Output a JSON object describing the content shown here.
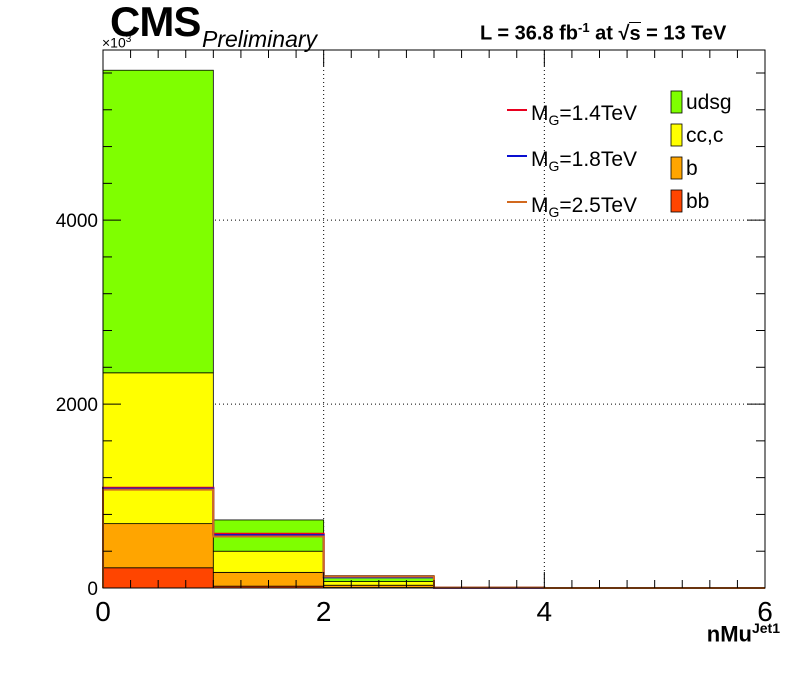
{
  "header": {
    "experiment": "CMS",
    "status": "Preliminary",
    "lumi_prefix": "L = 36.8 fb",
    "lumi_exp": "-1",
    "lumi_at": " at ",
    "sqrt_sym": "√",
    "sqrt_s": "s",
    "energy": " = 13 TeV"
  },
  "chart_data": {
    "type": "bar",
    "stacked": true,
    "histogram": true,
    "bin_edges": [
      0,
      1,
      2,
      3,
      4,
      5,
      6
    ],
    "xlabel_main": "nMu",
    "xlabel_sup": "Jet1",
    "ylabel": "",
    "y_multiplier_base": "×10",
    "y_multiplier_exp": "3",
    "xlim": [
      0,
      6
    ],
    "ylim": [
      0,
      5850
    ],
    "x_ticks": [
      0,
      2,
      4,
      6
    ],
    "y_ticks": [
      0,
      2000,
      4000
    ],
    "x_tick_labels": [
      "0",
      "2",
      "4",
      "6"
    ],
    "y_tick_labels": [
      "0",
      "2000",
      "4000"
    ],
    "grid": true,
    "legend_position": "top-right",
    "series": [
      {
        "name": "bb",
        "color": "#ff4500",
        "values": [
          220,
          20,
          5,
          0,
          0,
          0
        ]
      },
      {
        "name": "b",
        "color": "#ffa500",
        "values": [
          480,
          150,
          25,
          2,
          1,
          0
        ]
      },
      {
        "name": "cc,c",
        "color": "#ffff00",
        "values": [
          1640,
          230,
          40,
          3,
          1,
          0
        ]
      },
      {
        "name": "udsg",
        "color": "#7fff00",
        "values": [
          3290,
          340,
          65,
          5,
          1,
          0
        ]
      }
    ],
    "signals": [
      {
        "name": "M_G=1.4TeV",
        "label_main": "M",
        "label_sub": "G",
        "label_rest": "=1.4TeV",
        "color": "#e8001f",
        "values": [
          1090,
          590,
          120,
          3,
          0,
          0
        ]
      },
      {
        "name": "M_G=1.8TeV",
        "label_main": "M",
        "label_sub": "G",
        "label_rest": "=1.8TeV",
        "color": "#0a0fd0",
        "values": [
          1080,
          575,
          115,
          3,
          0,
          0
        ]
      },
      {
        "name": "M_G=2.5TeV",
        "label_main": "M",
        "label_sub": "G",
        "label_rest": "=2.5TeV",
        "color": "#d2691e",
        "values": [
          1070,
          560,
          125,
          4,
          0,
          0
        ]
      }
    ]
  }
}
